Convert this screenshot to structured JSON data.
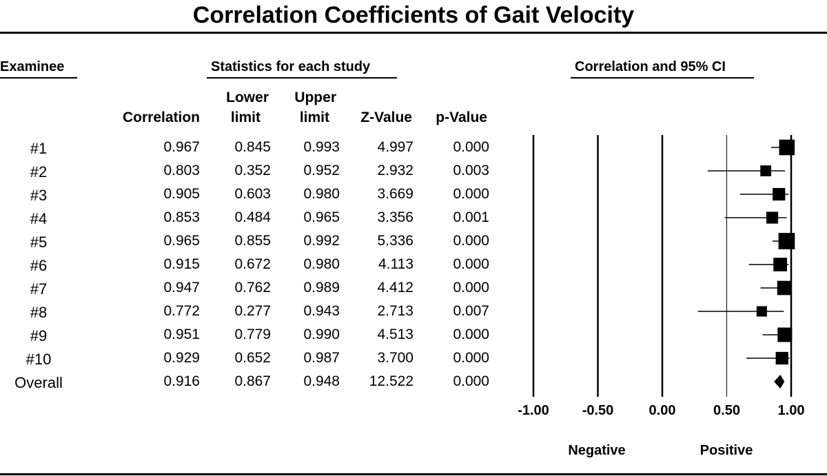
{
  "title": "Correlation Coefficients of Gait Velocity",
  "sections": {
    "examinee": "Examinee",
    "statistics": "Statistics for each study",
    "plot": "Correlation and 95% CI"
  },
  "columns": {
    "correlation": "Correlation",
    "lower_line1": "Lower",
    "lower_line2": "limit",
    "upper_line1": "Upper",
    "upper_line2": "limit",
    "z_value": "Z-Value",
    "p_value": "p-Value"
  },
  "rows": [
    {
      "label": "#1",
      "correlation": "0.967",
      "lower": "0.845",
      "upper": "0.993",
      "z": "4.997",
      "p": "0.000"
    },
    {
      "label": "#2",
      "correlation": "0.803",
      "lower": "0.352",
      "upper": "0.952",
      "z": "2.932",
      "p": "0.003"
    },
    {
      "label": "#3",
      "correlation": "0.905",
      "lower": "0.603",
      "upper": "0.980",
      "z": "3.669",
      "p": "0.000"
    },
    {
      "label": "#4",
      "correlation": "0.853",
      "lower": "0.484",
      "upper": "0.965",
      "z": "3.356",
      "p": "0.001"
    },
    {
      "label": "#5",
      "correlation": "0.965",
      "lower": "0.855",
      "upper": "0.992",
      "z": "5.336",
      "p": "0.000"
    },
    {
      "label": "#6",
      "correlation": "0.915",
      "lower": "0.672",
      "upper": "0.980",
      "z": "4.113",
      "p": "0.000"
    },
    {
      "label": "#7",
      "correlation": "0.947",
      "lower": "0.762",
      "upper": "0.989",
      "z": "4.412",
      "p": "0.000"
    },
    {
      "label": "#8",
      "correlation": "0.772",
      "lower": "0.277",
      "upper": "0.943",
      "z": "2.713",
      "p": "0.007"
    },
    {
      "label": "#9",
      "correlation": "0.951",
      "lower": "0.779",
      "upper": "0.990",
      "z": "4.513",
      "p": "0.000"
    },
    {
      "label": "#10",
      "correlation": "0.929",
      "lower": "0.652",
      "upper": "0.987",
      "z": "3.700",
      "p": "0.000"
    },
    {
      "label": "Overall",
      "correlation": "0.916",
      "lower": "0.867",
      "upper": "0.948",
      "z": "12.522",
      "p": "0.000"
    }
  ],
  "axis": {
    "ticks": [
      "-1.00",
      "-0.50",
      "0.00",
      "0.50",
      "1.00"
    ],
    "negative_label": "Negative",
    "positive_label": "Positive"
  },
  "chart_data": {
    "type": "forest",
    "title": "Correlation Coefficients of Gait Velocity",
    "xlabel": "Correlation and 95% CI",
    "xlim": [
      -1.0,
      1.0
    ],
    "xticks": [
      -1.0,
      -0.5,
      0.0,
      0.5,
      1.0
    ],
    "categories": [
      "#1",
      "#2",
      "#3",
      "#4",
      "#5",
      "#6",
      "#7",
      "#8",
      "#9",
      "#10",
      "Overall"
    ],
    "correlation": [
      0.967,
      0.803,
      0.905,
      0.853,
      0.965,
      0.915,
      0.947,
      0.772,
      0.951,
      0.929,
      0.916
    ],
    "lower": [
      0.845,
      0.352,
      0.603,
      0.484,
      0.855,
      0.672,
      0.762,
      0.277,
      0.779,
      0.652,
      0.867
    ],
    "upper": [
      0.993,
      0.952,
      0.98,
      0.965,
      0.992,
      0.98,
      0.989,
      0.943,
      0.99,
      0.987,
      0.948
    ],
    "z_value": [
      4.997,
      2.932,
      3.669,
      3.356,
      5.336,
      4.113,
      4.412,
      2.713,
      4.513,
      3.7,
      12.522
    ],
    "p_value": [
      0.0,
      0.003,
      0.0,
      0.001,
      0.0,
      0.0,
      0.0,
      0.007,
      0.0,
      0.0,
      0.0
    ],
    "summary_marker": "diamond",
    "study_marker": "square",
    "grid": false
  }
}
